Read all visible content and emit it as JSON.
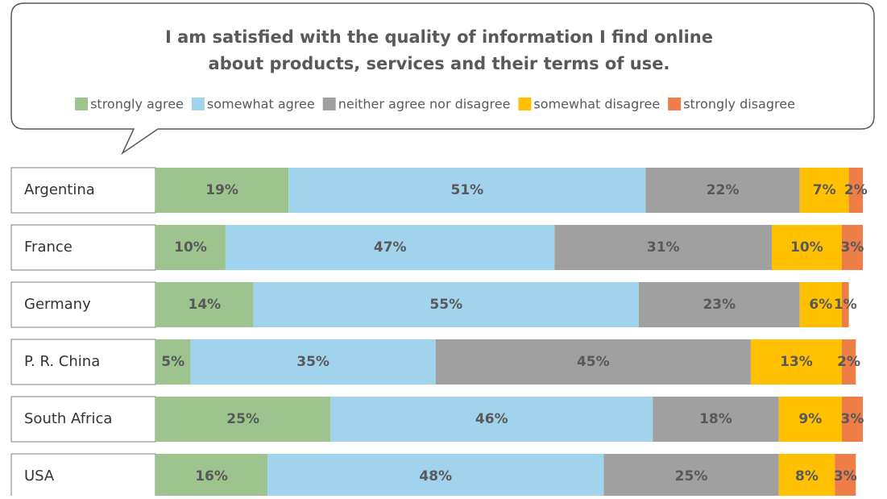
{
  "chart_data": {
    "type": "stacked-bar-horizontal",
    "title": [
      "I am satisfied with the quality of information I find online",
      "about products, services and their terms of use."
    ],
    "categories": [
      "Argentina",
      "France",
      "Germany",
      "P. R. China",
      "South Africa",
      "USA"
    ],
    "series": [
      {
        "name": "strongly agree",
        "color": "#9dc38e",
        "values": [
          19,
          10,
          14,
          5,
          25,
          16
        ],
        "value_labels": [
          "19%",
          "10%",
          "14%",
          "5%",
          "25%",
          "16%"
        ]
      },
      {
        "name": "somewhat agree",
        "color": "#a1d4ec",
        "values": [
          51,
          47,
          55,
          35,
          46,
          48
        ],
        "value_labels": [
          "51%",
          "47%",
          "55%",
          "35%",
          "46%",
          "48%"
        ]
      },
      {
        "name": "neither agree nor disagree",
        "color": "#a0a0a0",
        "values": [
          22,
          31,
          23,
          45,
          18,
          25
        ],
        "value_labels": [
          "22%",
          "31%",
          "23%",
          "45%",
          "18%",
          "25%"
        ]
      },
      {
        "name": "somewhat disagree",
        "color": "#ffc000",
        "values": [
          7,
          10,
          6,
          13,
          9,
          8
        ],
        "value_labels": [
          "7%",
          "10%",
          "6%",
          "13%",
          "9%",
          "8%"
        ]
      },
      {
        "name": "strongly disagree",
        "color": "#ee7d47",
        "values": [
          2,
          3,
          1,
          2,
          3,
          3
        ],
        "value_labels": [
          "2%",
          "3%",
          "1%",
          "2%",
          "3%",
          "3%"
        ]
      }
    ]
  }
}
